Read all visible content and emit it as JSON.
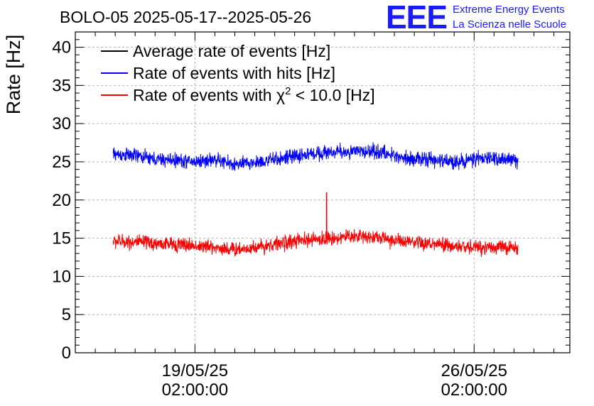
{
  "chart_data": {
    "type": "line",
    "title": "BOLO-05 2025-05-17--2025-05-26",
    "ylabel": "Rate [Hz]",
    "xlabel": "",
    "ylim": [
      0,
      42
    ],
    "y_ticks": [
      0,
      5,
      10,
      15,
      20,
      25,
      30,
      35,
      40
    ],
    "x_range_days": [
      0.0,
      12.4
    ],
    "x_ticks": [
      {
        "day": 3.0,
        "date": "19/05/25",
        "time": "02:00:00"
      },
      {
        "day": 10.0,
        "date": "26/05/25",
        "time": "02:00:00"
      }
    ],
    "grid": true,
    "legend_position": "top-left",
    "legend": [
      {
        "label": "Average rate of events [Hz]",
        "color": "#000000"
      },
      {
        "label": "Rate of events with hits [Hz]",
        "color": "#0000ff"
      },
      {
        "label": "Rate of events with χ² < 10.0 [Hz]",
        "color": "#ff0000",
        "prefix": "Rate of events with ",
        "chi": "χ",
        "sup": "2",
        "suffix": " < 10.0 [Hz]"
      }
    ],
    "series": [
      {
        "name": "Average rate of events [Hz]",
        "color": "#000000",
        "x": [],
        "values": []
      },
      {
        "name": "Rate of events with hits [Hz]",
        "color": "#0000ff",
        "noise": 1.4,
        "x": [
          0.95,
          1.5,
          2.0,
          2.5,
          3.0,
          3.5,
          4.0,
          4.5,
          5.0,
          5.5,
          6.0,
          6.5,
          7.0,
          7.5,
          8.0,
          8.5,
          9.0,
          9.5,
          10.0,
          10.5,
          11.0,
          11.1
        ],
        "values": [
          26.0,
          25.8,
          25.3,
          25.2,
          25.0,
          25.3,
          24.6,
          24.9,
          25.3,
          25.7,
          26.1,
          26.3,
          26.3,
          26.4,
          25.8,
          25.4,
          25.2,
          25.0,
          25.3,
          25.5,
          25.2,
          25.0
        ]
      },
      {
        "name": "Rate of events with χ² < 10.0 [Hz]",
        "color": "#ff0000",
        "noise": 1.4,
        "spike": {
          "x": 6.3,
          "value": 21.0
        },
        "x": [
          0.95,
          1.5,
          2.0,
          2.5,
          3.0,
          3.5,
          4.0,
          4.5,
          5.0,
          5.5,
          6.0,
          6.5,
          7.0,
          7.5,
          8.0,
          8.5,
          9.0,
          9.5,
          10.0,
          10.5,
          11.0,
          11.1
        ],
        "values": [
          14.6,
          14.5,
          14.3,
          14.2,
          14.0,
          13.8,
          13.5,
          13.8,
          14.2,
          14.6,
          14.8,
          15.0,
          15.3,
          15.2,
          14.7,
          14.3,
          14.2,
          13.9,
          13.8,
          13.9,
          13.7,
          13.6
        ]
      }
    ]
  },
  "logo": {
    "text": "EEE",
    "line1": "Extreme Energy Events",
    "line2": "La Scienza nelle Scuole",
    "color": "#1a1aff"
  }
}
